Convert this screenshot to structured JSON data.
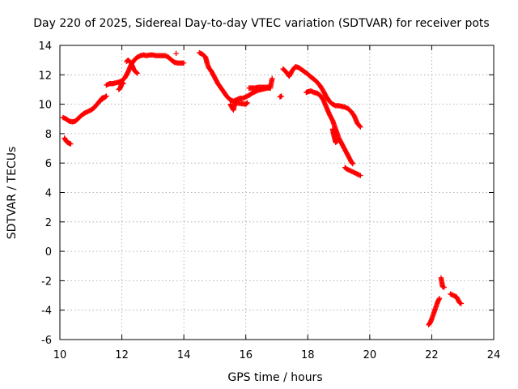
{
  "colors": {
    "series": "#ff0000",
    "axis": "#000000",
    "grid": "#a0a0a0",
    "background": "#ffffff"
  },
  "chart_data": {
    "type": "scatter",
    "title": "Day 220 of 2025, Sidereal Day-to-day VTEC variation (SDTVAR) for receiver pots",
    "xlabel": "GPS time / hours",
    "ylabel": "SDTVAR / TECUs",
    "xlim": [
      10,
      24
    ],
    "ylim": [
      -6,
      14
    ],
    "xticks": [
      10,
      12,
      14,
      16,
      18,
      20,
      22,
      24
    ],
    "yticks": [
      -6,
      -4,
      -2,
      0,
      2,
      4,
      6,
      8,
      10,
      12,
      14
    ],
    "grid": true,
    "marker": "plus",
    "series": [
      {
        "name": "SDTVAR",
        "segments": [
          [
            [
              10.1,
              9.1
            ],
            [
              10.2,
              9.0
            ],
            [
              10.3,
              8.85
            ],
            [
              10.4,
              8.8
            ],
            [
              10.5,
              8.85
            ],
            [
              10.6,
              9.05
            ],
            [
              10.7,
              9.25
            ],
            [
              10.8,
              9.4
            ],
            [
              10.9,
              9.5
            ],
            [
              11.0,
              9.6
            ],
            [
              11.1,
              9.75
            ],
            [
              11.2,
              10.0
            ],
            [
              11.3,
              10.25
            ],
            [
              11.4,
              10.4
            ],
            [
              11.5,
              10.55
            ]
          ],
          [
            [
              10.15,
              7.7
            ],
            [
              10.2,
              7.5
            ],
            [
              10.25,
              7.4
            ],
            [
              10.3,
              7.35
            ],
            [
              10.35,
              7.3
            ]
          ],
          [
            [
              11.3,
              10.2
            ],
            [
              11.35,
              10.4
            ],
            [
              11.4,
              10.45
            ]
          ],
          [
            [
              11.5,
              11.3
            ],
            [
              11.6,
              11.4
            ],
            [
              11.7,
              11.4
            ],
            [
              11.8,
              11.45
            ],
            [
              11.9,
              11.5
            ],
            [
              12.0,
              11.6
            ],
            [
              12.1,
              11.8
            ],
            [
              12.2,
              12.2
            ],
            [
              12.3,
              12.7
            ],
            [
              12.4,
              13.0
            ],
            [
              12.5,
              13.2
            ],
            [
              12.6,
              13.3
            ],
            [
              12.7,
              13.35
            ],
            [
              12.8,
              13.3
            ],
            [
              12.9,
              13.35
            ],
            [
              13.0,
              13.35
            ],
            [
              13.1,
              13.3
            ],
            [
              13.2,
              13.3
            ],
            [
              13.3,
              13.3
            ],
            [
              13.4,
              13.3
            ],
            [
              13.5,
              13.2
            ],
            [
              13.6,
              13.0
            ],
            [
              13.7,
              12.85
            ],
            [
              13.8,
              12.8
            ],
            [
              13.9,
              12.8
            ],
            [
              14.0,
              12.8
            ]
          ],
          [
            [
              11.9,
              11.0
            ],
            [
              11.95,
              11.1
            ],
            [
              12.0,
              11.5
            ],
            [
              12.05,
              11.4
            ]
          ],
          [
            [
              12.15,
              12.9
            ],
            [
              12.2,
              13.0
            ],
            [
              12.3,
              12.8
            ],
            [
              12.4,
              12.3
            ],
            [
              12.5,
              12.1
            ]
          ],
          [
            [
              13.75,
              13.45
            ]
          ],
          [
            [
              14.5,
              13.5
            ],
            [
              14.6,
              13.4
            ],
            [
              14.7,
              13.2
            ],
            [
              14.75,
              12.8
            ],
            [
              14.8,
              12.5
            ],
            [
              14.9,
              12.2
            ],
            [
              15.0,
              11.8
            ],
            [
              15.1,
              11.4
            ],
            [
              15.2,
              11.1
            ],
            [
              15.3,
              10.8
            ],
            [
              15.4,
              10.5
            ],
            [
              15.5,
              10.3
            ],
            [
              15.6,
              10.2
            ],
            [
              15.7,
              10.3
            ],
            [
              15.8,
              10.4
            ],
            [
              15.9,
              10.4
            ],
            [
              16.0,
              10.5
            ],
            [
              16.1,
              10.6
            ],
            [
              16.2,
              10.75
            ],
            [
              16.3,
              10.85
            ],
            [
              16.4,
              10.95
            ],
            [
              16.5,
              11.0
            ],
            [
              16.6,
              11.05
            ],
            [
              16.7,
              11.1
            ],
            [
              16.8,
              11.1
            ]
          ],
          [
            [
              15.5,
              10.0
            ],
            [
              15.55,
              9.8
            ],
            [
              15.6,
              9.6
            ],
            [
              15.65,
              10.1
            ],
            [
              16.0,
              10.0
            ],
            [
              16.05,
              10.1
            ]
          ],
          [
            [
              16.1,
              11.1
            ],
            [
              16.2,
              11.1
            ],
            [
              16.3,
              11.1
            ],
            [
              16.4,
              11.15
            ],
            [
              16.5,
              11.15
            ],
            [
              16.6,
              11.15
            ],
            [
              16.7,
              11.15
            ],
            [
              16.8,
              11.2
            ],
            [
              16.85,
              11.75
            ]
          ],
          [
            [
              17.1,
              10.5
            ],
            [
              17.15,
              10.55
            ]
          ],
          [
            [
              17.2,
              12.4
            ],
            [
              17.3,
              12.2
            ],
            [
              17.4,
              11.9
            ],
            [
              17.5,
              12.3
            ],
            [
              17.6,
              12.55
            ],
            [
              17.7,
              12.5
            ],
            [
              17.8,
              12.35
            ],
            [
              17.9,
              12.2
            ],
            [
              18.0,
              12.05
            ],
            [
              18.1,
              11.85
            ],
            [
              18.2,
              11.7
            ],
            [
              18.3,
              11.5
            ],
            [
              18.4,
              11.25
            ],
            [
              18.5,
              10.9
            ],
            [
              18.6,
              10.5
            ],
            [
              18.7,
              10.2
            ],
            [
              18.8,
              10.0
            ],
            [
              18.9,
              9.9
            ],
            [
              19.0,
              9.9
            ],
            [
              19.1,
              9.85
            ],
            [
              19.2,
              9.8
            ],
            [
              19.3,
              9.7
            ],
            [
              19.4,
              9.5
            ],
            [
              19.5,
              9.2
            ],
            [
              19.6,
              8.7
            ],
            [
              19.7,
              8.45
            ]
          ],
          [
            [
              17.95,
              10.8
            ],
            [
              18.0,
              10.85
            ],
            [
              18.1,
              10.9
            ],
            [
              18.2,
              10.8
            ],
            [
              18.3,
              10.75
            ],
            [
              18.4,
              10.6
            ],
            [
              18.5,
              10.3
            ],
            [
              18.6,
              9.8
            ],
            [
              18.7,
              9.3
            ],
            [
              18.8,
              8.9
            ],
            [
              18.9,
              8.3
            ],
            [
              19.0,
              7.7
            ],
            [
              19.1,
              7.3
            ],
            [
              19.2,
              6.9
            ],
            [
              19.3,
              6.5
            ],
            [
              19.4,
              6.1
            ],
            [
              19.45,
              5.95
            ]
          ],
          [
            [
              18.8,
              8.3
            ],
            [
              18.85,
              7.8
            ],
            [
              18.9,
              7.4
            ],
            [
              18.95,
              7.5
            ]
          ],
          [
            [
              19.2,
              5.7
            ],
            [
              19.25,
              5.6
            ],
            [
              19.7,
              5.15
            ]
          ],
          [
            [
              21.9,
              -5.0
            ],
            [
              21.95,
              -4.85
            ],
            [
              22.0,
              -4.6
            ],
            [
              22.05,
              -4.3
            ],
            [
              22.1,
              -4.0
            ],
            [
              22.15,
              -3.7
            ],
            [
              22.2,
              -3.4
            ],
            [
              22.25,
              -3.2
            ]
          ],
          [
            [
              22.3,
              -1.8
            ],
            [
              22.35,
              -2.4
            ],
            [
              22.4,
              -2.45
            ]
          ],
          [
            [
              22.6,
              -2.9
            ],
            [
              22.7,
              -3.0
            ],
            [
              22.8,
              -3.1
            ],
            [
              22.85,
              -3.3
            ],
            [
              22.9,
              -3.5
            ],
            [
              22.95,
              -3.55
            ]
          ]
        ]
      }
    ]
  }
}
